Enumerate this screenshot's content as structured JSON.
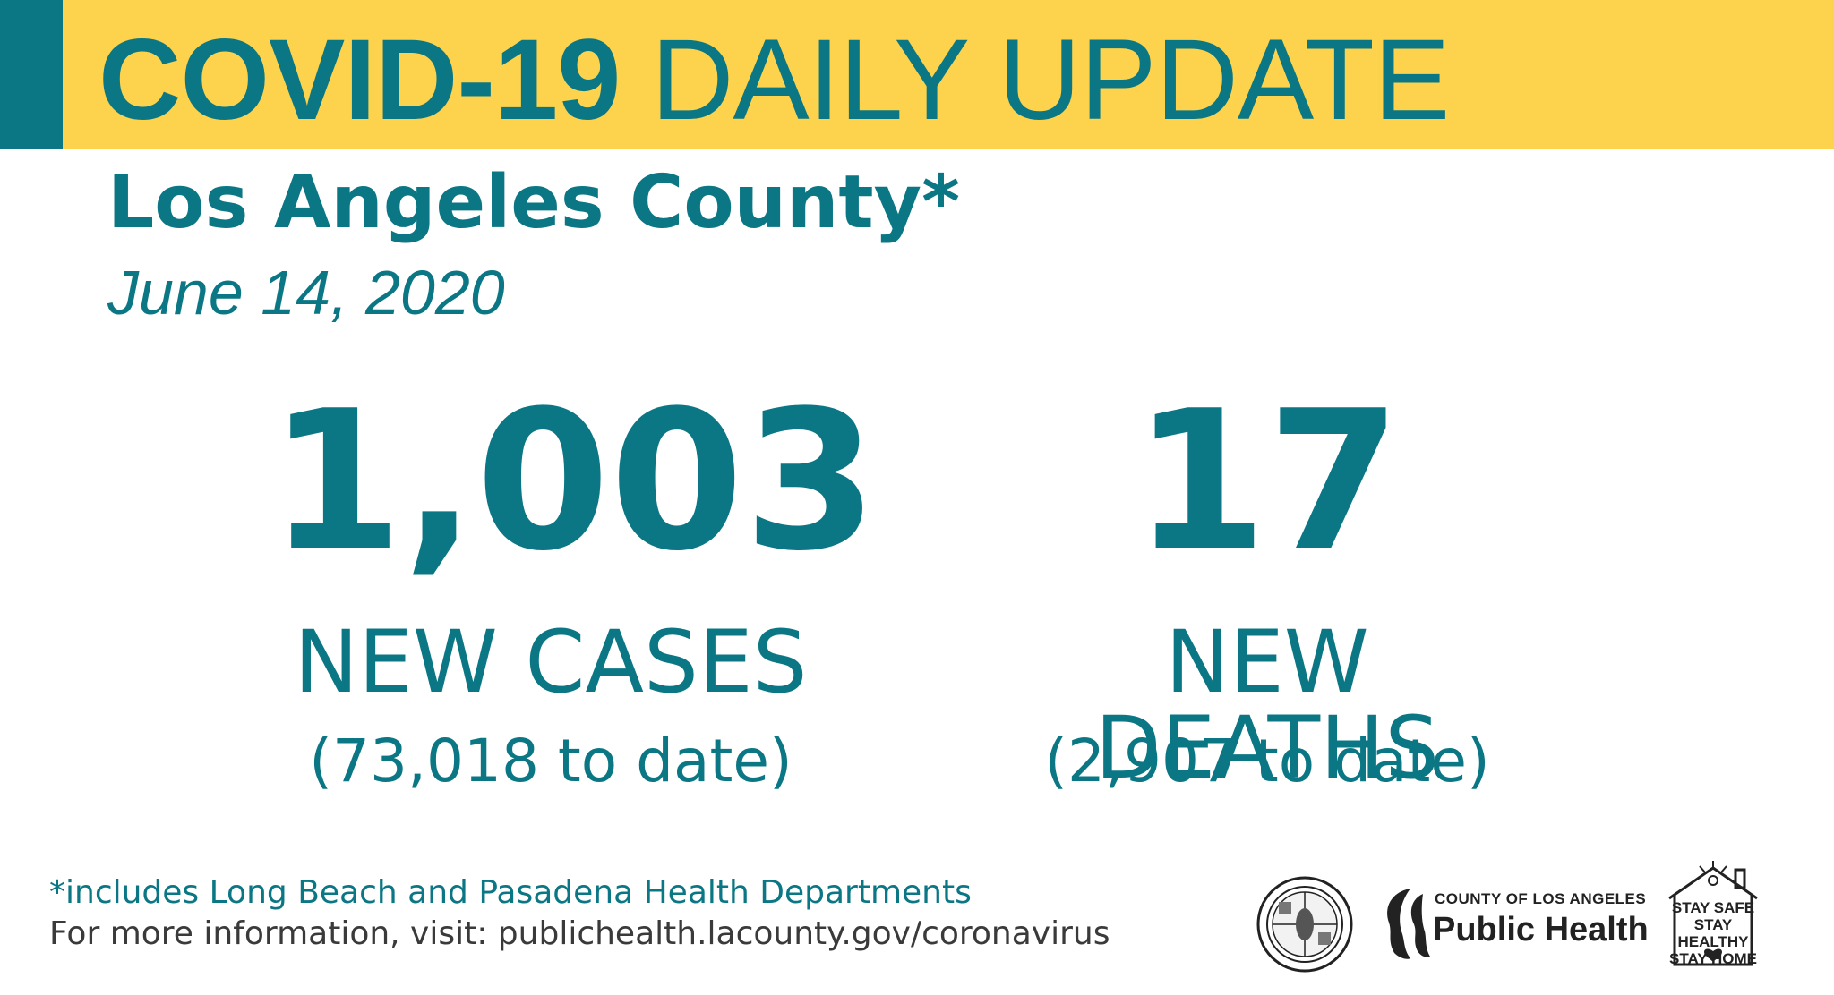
{
  "banner": {
    "title_bold": "COVID-19",
    "title_regular": "DAILY UPDATE"
  },
  "header": {
    "county": "Los Angeles County*",
    "date": "June 14, 2020"
  },
  "stats": {
    "cases": {
      "number": "1,003",
      "label": "NEW CASES",
      "total": "(73,018 to date)"
    },
    "deaths": {
      "number": "17",
      "label": "NEW DEATHS",
      "total": "(2,907 to date)"
    }
  },
  "footer": {
    "footnote": "*includes Long Beach and Pasadena Health Departments",
    "more_info": "For more information, visit: publichealth.lacounty.gov/coronavirus"
  },
  "logos": {
    "seal_icon": "county-seal",
    "public_health_small": "COUNTY OF LOS ANGELES",
    "public_health_big": "Public Health",
    "stay_safe_lines": [
      "STAY SAFE",
      "STAY HEALTHY",
      "STAY HOME"
    ]
  },
  "colors": {
    "teal": "#0b7784",
    "yellow": "#fdd34d",
    "gray_text": "#3a3a3a"
  }
}
